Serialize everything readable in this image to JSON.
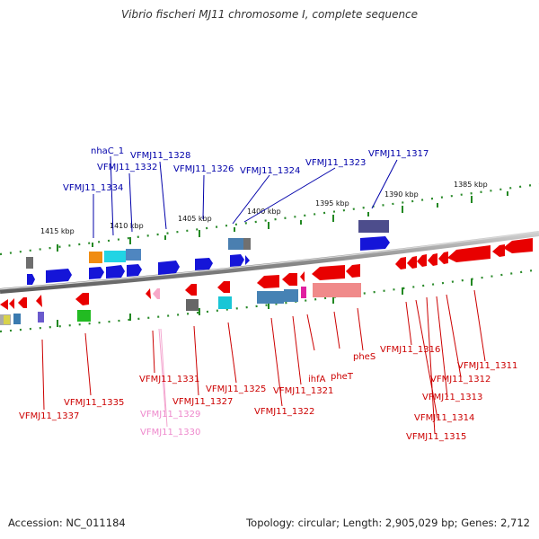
{
  "title": "Vibrio fischeri MJ11 chromosome I, complete sequence",
  "footer": {
    "accession": "Accession: NC_011184",
    "topology": "Topology: circular; Length: 2,905,029 bp; Genes: 2,712"
  },
  "colors": {
    "forward_label": "#0000aa",
    "reverse_label": "#cc0000",
    "pseudo_label": "#ee88cc",
    "tick": "#228822",
    "backbone": "#888888"
  },
  "scale_labels": [
    {
      "id": "1415",
      "text": "1415 kbp"
    },
    {
      "id": "1410",
      "text": "1410 kbp"
    },
    {
      "id": "1405",
      "text": "1405 kbp"
    },
    {
      "id": "1400",
      "text": "1400 kbp"
    },
    {
      "id": "1395",
      "text": "1395 kbp"
    },
    {
      "id": "1390",
      "text": "1390 kbp"
    },
    {
      "id": "1385",
      "text": "1385 kbp"
    }
  ],
  "genes_top": [
    {
      "id": "nhaC_1",
      "text": "nhaC_1"
    },
    {
      "id": "1332",
      "text": "VFMJ11_1332"
    },
    {
      "id": "1328",
      "text": "VFMJ11_1328"
    },
    {
      "id": "1334",
      "text": "VFMJ11_1334"
    },
    {
      "id": "1326",
      "text": "VFMJ11_1326"
    },
    {
      "id": "1324",
      "text": "VFMJ11_1324"
    },
    {
      "id": "1323",
      "text": "VFMJ11_1323"
    },
    {
      "id": "1317",
      "text": "VFMJ11_1317"
    }
  ],
  "genes_bottom": [
    {
      "id": "1337",
      "text": "VFMJ11_1337"
    },
    {
      "id": "1335",
      "text": "VFMJ11_1335"
    },
    {
      "id": "1331",
      "text": "VFMJ11_1331"
    },
    {
      "id": "1329",
      "text": "VFMJ11_1329"
    },
    {
      "id": "1330",
      "text": "VFMJ11_1330"
    },
    {
      "id": "1327",
      "text": "VFMJ11_1327"
    },
    {
      "id": "1325",
      "text": "VFMJ11_1325"
    },
    {
      "id": "1322",
      "text": "VFMJ11_1322"
    },
    {
      "id": "1321",
      "text": "VFMJ11_1321"
    },
    {
      "id": "ihfA",
      "text": "ihfA"
    },
    {
      "id": "pheT",
      "text": "pheT"
    },
    {
      "id": "pheS",
      "text": "pheS"
    },
    {
      "id": "1316",
      "text": "VFMJ11_1316"
    },
    {
      "id": "1312",
      "text": "VFMJ11_1312"
    },
    {
      "id": "1311",
      "text": "VFMJ11_1311"
    },
    {
      "id": "1313",
      "text": "VFMJ11_1313"
    },
    {
      "id": "1314",
      "text": "VFMJ11_1314"
    },
    {
      "id": "1315",
      "text": "VFMJ11_1315"
    }
  ]
}
